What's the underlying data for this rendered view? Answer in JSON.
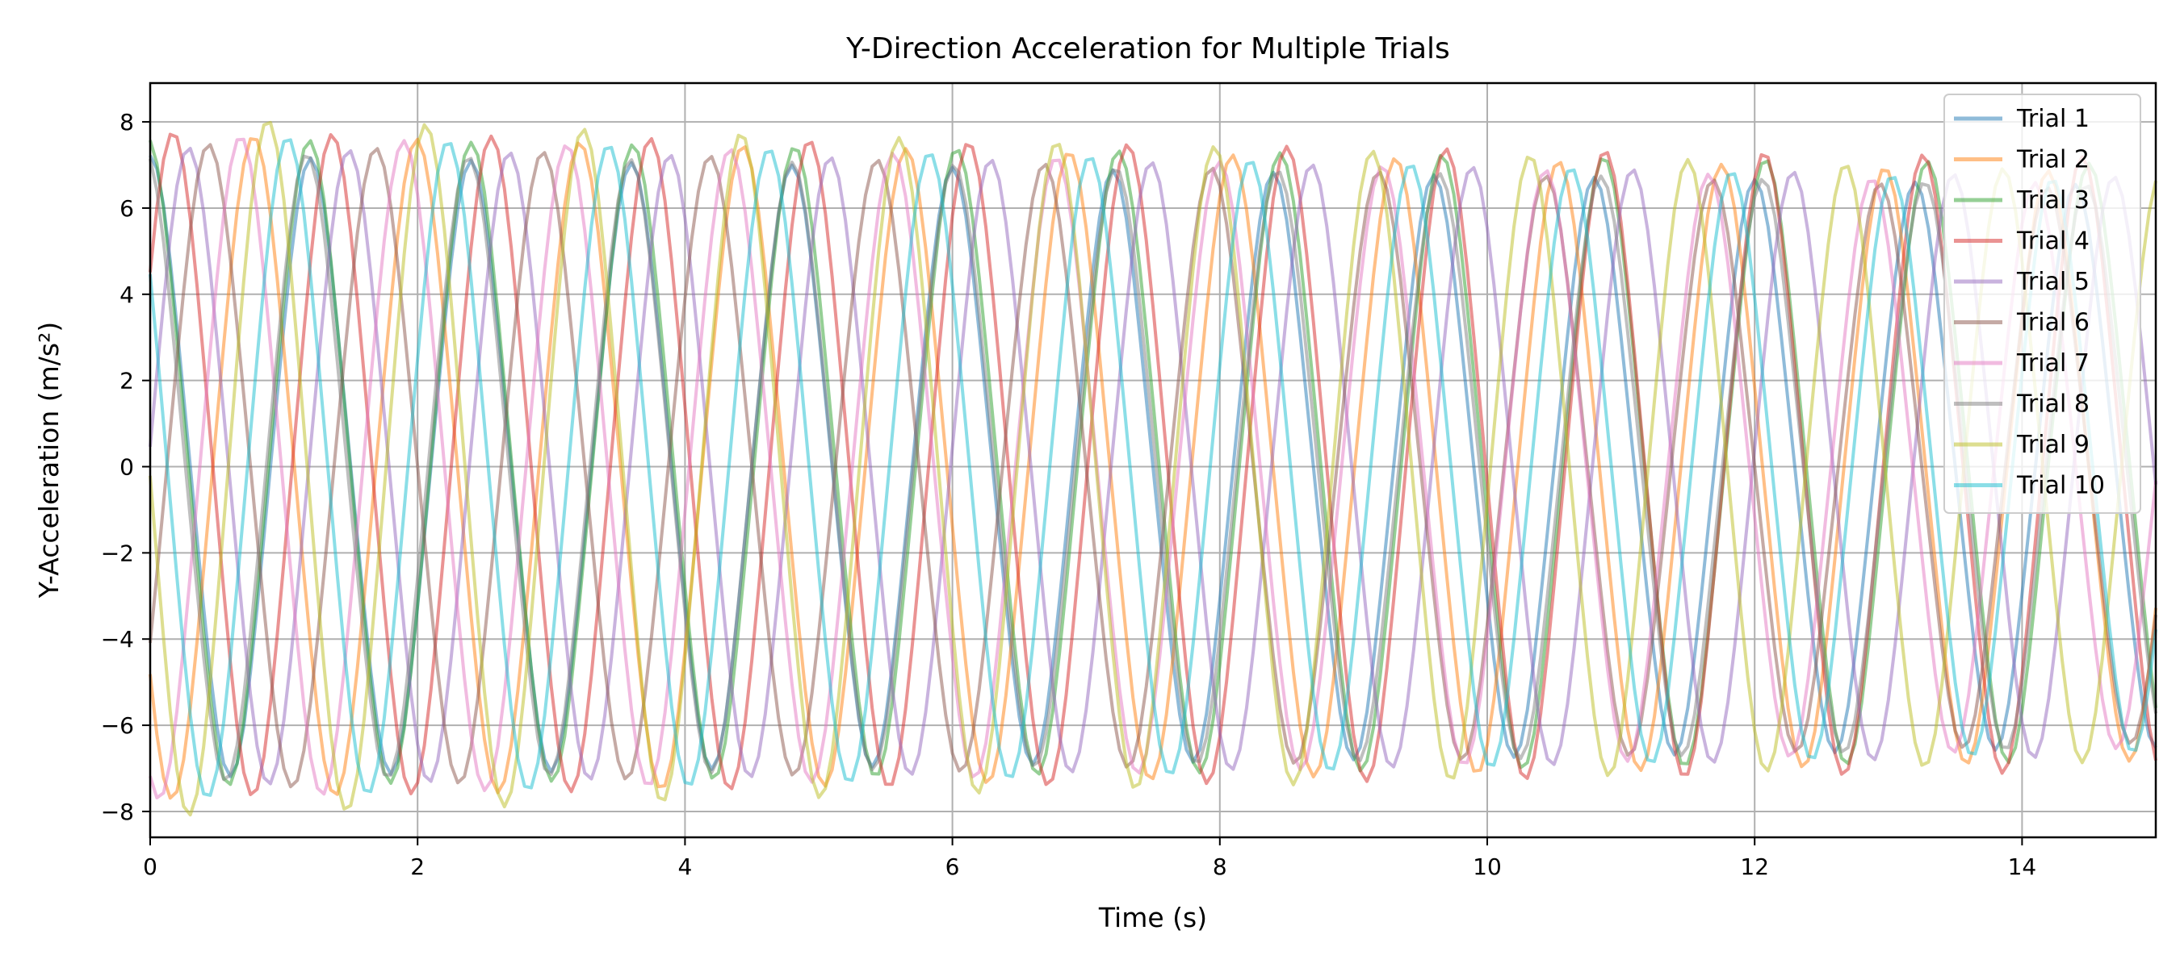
{
  "chart_data": {
    "type": "line",
    "title": "Y-Direction Acceleration for Multiple Trials",
    "xlabel": "Time (s)",
    "ylabel": "Y-Acceleration (m/s²)",
    "xlim": [
      0,
      15
    ],
    "ylim": [
      -8.6,
      8.9
    ],
    "xticks": [
      0,
      2,
      4,
      6,
      8,
      10,
      12,
      14
    ],
    "yticks": [
      -8,
      -6,
      -4,
      -2,
      0,
      2,
      4,
      6,
      8
    ],
    "ytick_labels": [
      "−8",
      "−6",
      "−4",
      "−2",
      "0",
      "2",
      "4",
      "6",
      "8"
    ],
    "grid": true,
    "legend_position": "top-right",
    "line_alpha": 0.5,
    "sample_step_s": 0.05,
    "series": [
      {
        "name": "Trial 1",
        "color": "#1f77b4",
        "period": 1.2,
        "phase": 0.0,
        "start_amp": 7.0,
        "end_amp": 6.3,
        "offset": 0.0
      },
      {
        "name": "Trial 2",
        "color": "#ff7f0e",
        "period": 1.22,
        "phase": 2.3,
        "start_amp": 7.5,
        "end_amp": 6.6,
        "offset": 0.0
      },
      {
        "name": "Trial 3",
        "color": "#2ca02c",
        "period": 1.21,
        "phase": 0.1,
        "start_amp": 7.3,
        "end_amp": 6.7,
        "offset": 0.1
      },
      {
        "name": "Trial 4",
        "color": "#d62728",
        "period": 1.19,
        "phase": -0.9,
        "start_amp": 7.5,
        "end_amp": 6.9,
        "offset": 0.05
      },
      {
        "name": "Trial 5",
        "color": "#9467bd",
        "period": 1.2,
        "phase": -1.5,
        "start_amp": 7.2,
        "end_amp": 6.5,
        "offset": 0.0
      },
      {
        "name": "Trial 6",
        "color": "#8c564b",
        "period": 1.25,
        "phase": -2.2,
        "start_amp": 7.3,
        "end_amp": 6.2,
        "offset": 0.0
      },
      {
        "name": "Trial 7",
        "color": "#e377c2",
        "period": 1.22,
        "phase": 2.8,
        "start_amp": 7.5,
        "end_amp": 6.3,
        "offset": 0.0
      },
      {
        "name": "Trial 8",
        "color": "#7f7f7f",
        "period": 1.21,
        "phase": 0.2,
        "start_amp": 7.1,
        "end_amp": 6.3,
        "offset": 0.0
      },
      {
        "name": "Trial 9",
        "color": "#bcbd22",
        "period": 1.18,
        "phase": 1.6,
        "start_amp": 7.9,
        "end_amp": 6.6,
        "offset": 0.0
      },
      {
        "name": "Trial 10",
        "color": "#17becf",
        "period": 1.2,
        "phase": 0.9,
        "start_amp": 7.5,
        "end_amp": 6.4,
        "offset": 0.0
      }
    ]
  }
}
